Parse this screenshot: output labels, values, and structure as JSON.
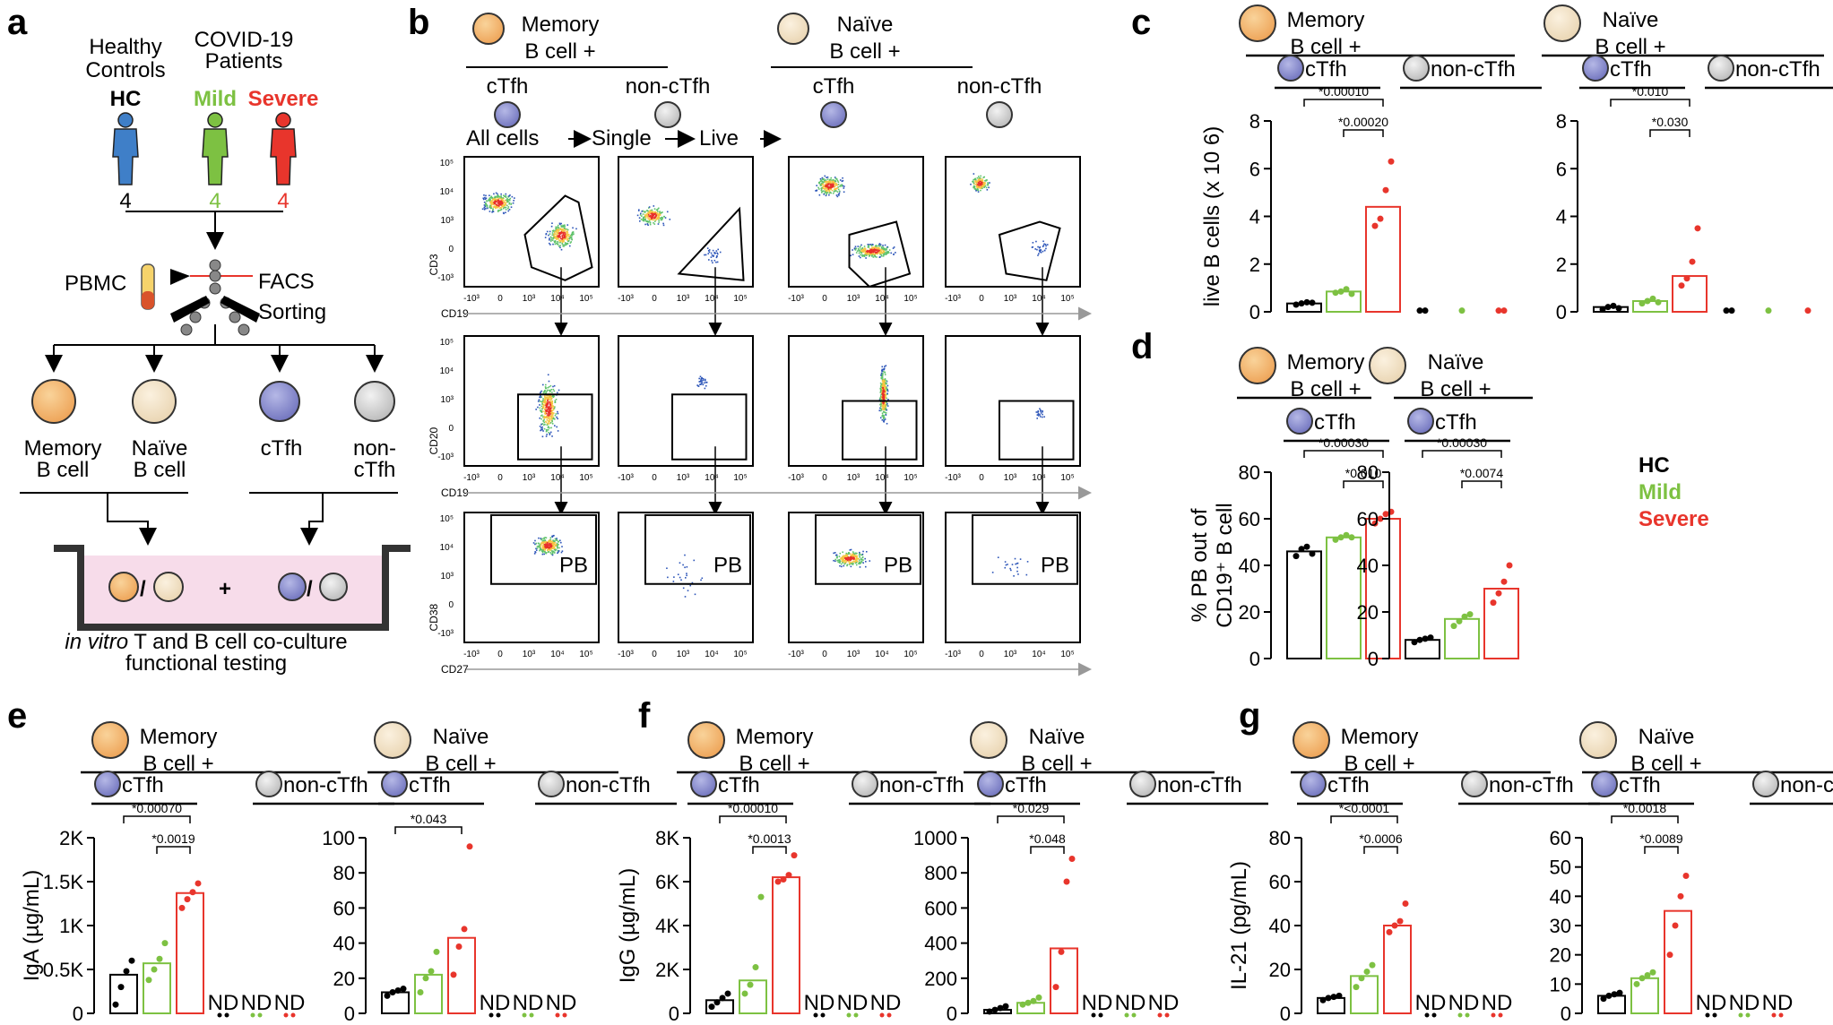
{
  "panel_labels": {
    "a": "a",
    "b": "b",
    "c": "c",
    "d": "d",
    "e": "e",
    "f": "f",
    "g": "g"
  },
  "colors": {
    "hc": "#000000",
    "mild": "#7dc142",
    "severe": "#e8352c",
    "memory": "#f2b56b",
    "naive": "#f1e0c4",
    "ctfh": "#8c8fcf",
    "nonctfh": "#d4d4d4",
    "culture": "#f7dcea"
  },
  "panel_a": {
    "healthy_controls": "Healthy\nControls",
    "covid_patients": "COVID-19\nPatients",
    "groups": [
      {
        "label": "HC",
        "n": "4",
        "color": "#000000"
      },
      {
        "label": "Mild",
        "n": "4",
        "color": "#7dc142"
      },
      {
        "label": "Severe",
        "n": "4",
        "color": "#e8352c"
      }
    ],
    "pbmc": "PBMC",
    "facs": "FACS",
    "sorting": "Sorting",
    "cells": [
      "Memory\nB cell",
      "Naïve\nB cell",
      "cTfh",
      "non-\ncTfh"
    ],
    "slash": "/",
    "plus": "+",
    "culture_italic": "in vitro",
    "culture_rest": " T and B cell co-culture",
    "culture_line2": "functional testing"
  },
  "panel_b": {
    "headers": [
      "Memory\nB cell +",
      "Naïve\nB cell +"
    ],
    "subheaders": [
      "cTfh",
      "non-cTfh",
      "cTfh",
      "non-cTfh"
    ],
    "gating": [
      "All cells",
      "Single",
      "Live"
    ],
    "row_y_labels": [
      "CD3",
      "CD20",
      "CD38"
    ],
    "row_x_labels": [
      "CD19",
      "CD19",
      "CD27"
    ],
    "y_ticks": [
      "10⁵",
      "10⁴",
      "10³",
      "0",
      "-10³"
    ],
    "x_ticks": [
      "-10³",
      "0",
      "10³",
      "10⁴",
      "10⁵"
    ],
    "gate_label": "PB"
  },
  "legend": {
    "hc": "HC",
    "mild": "Mild",
    "severe": "Severe"
  },
  "chart_data": [
    {
      "panel": "c",
      "type": "bar",
      "headers": [
        "Memory\nB cell +",
        "Naïve\nB cell +"
      ],
      "subheaders": [
        "cTfh",
        "non-cTfh"
      ],
      "ylabel": "live B cells (x 10 6)",
      "ylim": [
        0,
        8
      ],
      "yticks": [
        "0",
        "2",
        "4",
        "6",
        "8"
      ],
      "groups": [
        {
          "name": "Memory",
          "bars": [
            {
              "group": "HC",
              "value": 0.35,
              "points": [
                0.3,
                0.35,
                0.4,
                0.38
              ],
              "nd": false
            },
            {
              "group": "Mild",
              "value": 0.85,
              "points": [
                0.8,
                0.85,
                0.95,
                0.75
              ],
              "nd": false
            },
            {
              "group": "Severe",
              "value": 4.4,
              "points": [
                3.6,
                3.9,
                5.1,
                6.3
              ],
              "nd": false
            },
            {
              "group": "HC",
              "value": 0,
              "points": [
                0.05,
                0.05
              ],
              "nd": false
            },
            {
              "group": "Mild",
              "value": 0,
              "points": [
                0.05
              ],
              "nd": false
            },
            {
              "group": "Severe",
              "value": 0,
              "points": [
                0.05,
                0.05
              ],
              "nd": false
            }
          ],
          "sig": [
            {
              "text": "*0.00010",
              "from": 0,
              "to": 2
            },
            {
              "text": "*0.00020",
              "from": 1,
              "to": 2
            }
          ]
        },
        {
          "name": "Naive",
          "bars": [
            {
              "group": "HC",
              "value": 0.2,
              "points": [
                0.1,
                0.2,
                0.25,
                0.15
              ],
              "nd": false
            },
            {
              "group": "Mild",
              "value": 0.45,
              "points": [
                0.35,
                0.45,
                0.55,
                0.4
              ],
              "nd": false
            },
            {
              "group": "Severe",
              "value": 1.5,
              "points": [
                1.1,
                1.4,
                2.1,
                3.5
              ],
              "nd": false
            },
            {
              "group": "HC",
              "value": 0,
              "points": [
                0.05,
                0.05
              ],
              "nd": false
            },
            {
              "group": "Mild",
              "value": 0,
              "points": [
                0.05
              ],
              "nd": false
            },
            {
              "group": "Severe",
              "value": 0,
              "points": [
                0.05
              ],
              "nd": false
            }
          ],
          "sig": [
            {
              "text": "*0.010",
              "from": 0,
              "to": 2
            },
            {
              "text": "*0.030",
              "from": 1,
              "to": 2
            }
          ]
        }
      ]
    },
    {
      "panel": "d",
      "type": "bar",
      "headers": [
        "Memory\nB cell +",
        "Naïve\nB cell +"
      ],
      "subheaders": [
        "cTfh",
        "cTfh"
      ],
      "ylabel": "% PB out of\nCD19⁺ B cell",
      "ylim": [
        0,
        80
      ],
      "yticks": [
        "0",
        "20",
        "40",
        "60",
        "80"
      ],
      "groups": [
        {
          "name": "Memory",
          "bars": [
            {
              "group": "HC",
              "value": 46,
              "points": [
                44,
                47,
                48,
                45
              ]
            },
            {
              "group": "Mild",
              "value": 52,
              "points": [
                51,
                52,
                53,
                52
              ]
            },
            {
              "group": "Severe",
              "value": 60,
              "points": [
                58,
                60,
                62,
                63
              ]
            }
          ],
          "sig": [
            {
              "text": "*0.00030",
              "from": 0,
              "to": 2
            },
            {
              "text": "*0.010",
              "from": 1,
              "to": 2
            }
          ]
        },
        {
          "name": "Naive",
          "bars": [
            {
              "group": "HC",
              "value": 8,
              "points": [
                7,
                8,
                8.5,
                9
              ]
            },
            {
              "group": "Mild",
              "value": 17,
              "points": [
                14,
                16,
                18,
                19
              ]
            },
            {
              "group": "Severe",
              "value": 30,
              "points": [
                24,
                28,
                33,
                40
              ]
            }
          ],
          "sig": [
            {
              "text": "*0.00030",
              "from": 0,
              "to": 2
            },
            {
              "text": "*0.0074",
              "from": 1,
              "to": 2
            }
          ]
        }
      ]
    },
    {
      "panel": "e",
      "type": "bar",
      "headers": [
        "Memory\nB cell +",
        "Naïve\nB cell +"
      ],
      "subheaders": [
        "cTfh",
        "non-cTfh"
      ],
      "ylabel": "IgA (µg/mL)",
      "nd_label": "ND",
      "groups": [
        {
          "name": "Memory",
          "ylim": [
            0,
            2000
          ],
          "yticks": [
            "0",
            "0.5K",
            "1K",
            "1.5K",
            "2K"
          ],
          "bars": [
            {
              "group": "HC",
              "value": 440,
              "points": [
                100,
                300,
                480,
                600
              ]
            },
            {
              "group": "Mild",
              "value": 570,
              "points": [
                380,
                500,
                620,
                800
              ]
            },
            {
              "group": "Severe",
              "value": 1370,
              "points": [
                1200,
                1300,
                1380,
                1480
              ]
            },
            {
              "group": "HC",
              "nd": true
            },
            {
              "group": "Mild",
              "nd": true
            },
            {
              "group": "Severe",
              "nd": true
            }
          ],
          "sig": [
            {
              "text": "*0.00070",
              "from": 0,
              "to": 2
            },
            {
              "text": "*0.0019",
              "from": 1,
              "to": 2
            }
          ]
        },
        {
          "name": "Naive",
          "ylim": [
            0,
            100
          ],
          "yticks": [
            "0",
            "20",
            "40",
            "60",
            "80",
            "100"
          ],
          "bars": [
            {
              "group": "HC",
              "value": 12,
              "points": [
                10,
                12,
                13,
                14
              ]
            },
            {
              "group": "Mild",
              "value": 22,
              "points": [
                12,
                20,
                24,
                35
              ]
            },
            {
              "group": "Severe",
              "value": 43,
              "points": [
                22,
                38,
                48,
                95
              ]
            },
            {
              "group": "HC",
              "nd": true
            },
            {
              "group": "Mild",
              "nd": true
            },
            {
              "group": "Severe",
              "nd": true
            }
          ],
          "sig": [
            {
              "text": "*0.043",
              "from": 0,
              "to": 2
            }
          ]
        }
      ]
    },
    {
      "panel": "f",
      "type": "bar",
      "headers": [
        "Memory\nB cell +",
        "Naïve\nB cell +"
      ],
      "subheaders": [
        "cTfh",
        "non-cTfh"
      ],
      "ylabel": "IgG (µg/mL)",
      "nd_label": "ND",
      "groups": [
        {
          "name": "Memory",
          "ylim": [
            0,
            8000
          ],
          "yticks": [
            "0",
            "2K",
            "4K",
            "6K",
            "8K"
          ],
          "bars": [
            {
              "group": "HC",
              "value": 600,
              "points": [
                300,
                500,
                700,
                900
              ]
            },
            {
              "group": "Mild",
              "value": 1500,
              "points": [
                900,
                1300,
                2100,
                5300
              ]
            },
            {
              "group": "Severe",
              "value": 6200,
              "points": [
                6000,
                6100,
                6300,
                7200
              ]
            },
            {
              "group": "HC",
              "nd": true
            },
            {
              "group": "Mild",
              "nd": true
            },
            {
              "group": "Severe",
              "nd": true
            }
          ],
          "sig": [
            {
              "text": "*0.00010",
              "from": 0,
              "to": 2
            },
            {
              "text": "*0.0013",
              "from": 1,
              "to": 2
            }
          ]
        },
        {
          "name": "Naive",
          "ylim": [
            0,
            1000
          ],
          "yticks": [
            "0",
            "200",
            "400",
            "600",
            "800",
            "1000"
          ],
          "bars": [
            {
              "group": "HC",
              "value": 20,
              "points": [
                10,
                20,
                30,
                40
              ]
            },
            {
              "group": "Mild",
              "value": 60,
              "points": [
                50,
                60,
                70,
                90
              ]
            },
            {
              "group": "Severe",
              "value": 370,
              "points": [
                150,
                350,
                750,
                880
              ]
            },
            {
              "group": "HC",
              "nd": true
            },
            {
              "group": "Mild",
              "nd": true
            },
            {
              "group": "Severe",
              "nd": true
            }
          ],
          "sig": [
            {
              "text": "*0.029",
              "from": 0,
              "to": 2
            },
            {
              "text": "*0.048",
              "from": 1,
              "to": 2
            }
          ]
        }
      ]
    },
    {
      "panel": "g",
      "type": "bar",
      "headers": [
        "Memory\nB cell +",
        "Naïve\nB cell +"
      ],
      "subheaders": [
        "cTfh",
        "non-cTfh"
      ],
      "ylabel": "IL-21 (pg/mL)",
      "nd_label": "ND",
      "groups": [
        {
          "name": "Memory",
          "ylim": [
            0,
            80
          ],
          "yticks": [
            "0",
            "20",
            "40",
            "60",
            "80"
          ],
          "bars": [
            {
              "group": "HC",
              "value": 7,
              "points": [
                6,
                7,
                7.5,
                8
              ]
            },
            {
              "group": "Mild",
              "value": 17,
              "points": [
                12,
                16,
                19,
                22
              ]
            },
            {
              "group": "Severe",
              "value": 40,
              "points": [
                37,
                40,
                42,
                50
              ]
            },
            {
              "group": "HC",
              "nd": true
            },
            {
              "group": "Mild",
              "nd": true
            },
            {
              "group": "Severe",
              "nd": true
            }
          ],
          "sig": [
            {
              "text": "*<0.0001",
              "from": 0,
              "to": 2
            },
            {
              "text": "*0.0006",
              "from": 1,
              "to": 2
            }
          ]
        },
        {
          "name": "Naive",
          "ylim": [
            0,
            60
          ],
          "yticks": [
            "0",
            "10",
            "20",
            "30",
            "40",
            "50",
            "60"
          ],
          "bars": [
            {
              "group": "HC",
              "value": 6,
              "points": [
                5,
                6,
                6.5,
                7
              ]
            },
            {
              "group": "Mild",
              "value": 12,
              "points": [
                10,
                12,
                13,
                14
              ]
            },
            {
              "group": "Severe",
              "value": 35,
              "points": [
                20,
                30,
                40,
                47
              ]
            },
            {
              "group": "HC",
              "nd": true
            },
            {
              "group": "Mild",
              "nd": true
            },
            {
              "group": "Severe",
              "nd": true
            }
          ],
          "sig": [
            {
              "text": "*0.0018",
              "from": 0,
              "to": 2
            },
            {
              "text": "*0.0089",
              "from": 1,
              "to": 2
            }
          ]
        }
      ]
    }
  ]
}
